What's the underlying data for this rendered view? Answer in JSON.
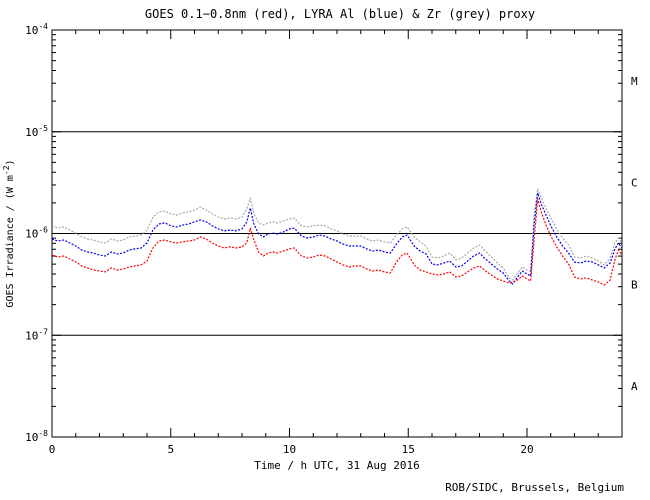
{
  "title": "GOES 0.1−0.8nm (red), LYRA Al (blue) & Zr (grey) proxy",
  "credit": "ROB/SIDC, Brussels, Belgium",
  "chart_data": {
    "type": "line",
    "title": "GOES 0.1−0.8nm (red), LYRA Al (blue) & Zr (grey) proxy",
    "xlabel": "Time / h UTC, 31 Aug 2016",
    "ylabel": "GOES Irradiance / (W m-2)",
    "ylabel_parts": {
      "main": "GOES Irradiance / (W m",
      "sup": "-2",
      "close": ")"
    },
    "x_range": [
      0,
      24
    ],
    "x_major_ticks": [
      0,
      5,
      10,
      15,
      20
    ],
    "x_minor_step": 1,
    "y_scale": "log",
    "y_range": [
      1e-08,
      0.0001
    ],
    "y_tick_exponents": [
      -4,
      -5,
      -6,
      -7,
      -8
    ],
    "hlines": [
      1e-05,
      1e-06,
      1e-07
    ],
    "grid": false,
    "legend_position": "none (colors named in title)",
    "flare_class_labels": [
      {
        "label": "M",
        "level": 3.16e-05
      },
      {
        "label": "C",
        "level": 3.16e-06
      },
      {
        "label": "B",
        "level": 3.16e-07
      },
      {
        "label": "A",
        "level": 3.16e-08
      }
    ],
    "x": [
      0,
      0.25,
      0.5,
      0.75,
      1,
      1.25,
      1.5,
      1.75,
      2,
      2.25,
      2.5,
      2.75,
      3,
      3.25,
      3.5,
      3.75,
      4,
      4.25,
      4.5,
      4.75,
      5,
      5.25,
      5.5,
      5.75,
      6,
      6.25,
      6.5,
      6.75,
      7,
      7.25,
      7.5,
      7.75,
      8,
      8.2,
      8.35,
      8.5,
      8.7,
      8.9,
      9.1,
      9.3,
      9.5,
      9.75,
      10,
      10.2,
      10.5,
      10.75,
      11,
      11.25,
      11.5,
      11.75,
      12,
      12.25,
      12.5,
      12.75,
      13,
      13.25,
      13.5,
      13.75,
      14,
      14.25,
      14.5,
      14.75,
      14.95,
      15.25,
      15.5,
      15.75,
      16,
      16.25,
      16.5,
      16.75,
      17,
      17.25,
      17.5,
      17.75,
      18,
      18.25,
      18.5,
      18.75,
      19,
      19.25,
      19.4,
      19.6,
      19.8,
      20,
      20.15,
      20.3,
      20.45,
      20.6,
      20.8,
      21,
      21.25,
      21.5,
      21.75,
      22,
      22.25,
      22.5,
      22.75,
      23,
      23.25,
      23.5,
      23.7,
      23.85,
      24
    ],
    "series": [
      {
        "name": "GOES 0.1-0.8nm",
        "key": "goes-xray",
        "color": "#ff0000",
        "values": [
          6.15e-07,
          5.87e-07,
          6.01e-07,
          5.62e-07,
          5.25e-07,
          4.8e-07,
          4.58e-07,
          4.38e-07,
          4.28e-07,
          4.19e-07,
          4.58e-07,
          4.38e-07,
          4.48e-07,
          4.69e-07,
          4.8e-07,
          4.91e-07,
          5.37e-07,
          7.21e-07,
          8.43e-07,
          8.63e-07,
          8.26e-07,
          8.07e-07,
          8.26e-07,
          8.43e-07,
          8.63e-07,
          9.25e-07,
          8.83e-07,
          8.07e-07,
          7.53e-07,
          7.21e-07,
          7.38e-07,
          7.21e-07,
          7.38e-07,
          8.07e-07,
          1.13e-06,
          8.63e-07,
          6.58e-07,
          6.01e-07,
          6.43e-07,
          6.58e-07,
          6.43e-07,
          6.73e-07,
          7.05e-07,
          7.21e-07,
          6.01e-07,
          5.74e-07,
          5.87e-07,
          6.15e-07,
          6.01e-07,
          5.62e-07,
          5.25e-07,
          4.91e-07,
          4.69e-07,
          4.8e-07,
          4.8e-07,
          4.48e-07,
          4.28e-07,
          4.38e-07,
          4.19e-07,
          4.09e-07,
          5.25e-07,
          6.15e-07,
          6.43e-07,
          4.91e-07,
          4.38e-07,
          4.19e-07,
          4e-07,
          3.91e-07,
          4e-07,
          4.19e-07,
          3.74e-07,
          3.83e-07,
          4.19e-07,
          4.58e-07,
          4.8e-07,
          4.28e-07,
          3.91e-07,
          3.57e-07,
          3.41e-07,
          3.26e-07,
          3.33e-07,
          3.49e-07,
          3.83e-07,
          3.57e-07,
          3.41e-07,
          8.63e-07,
          2.18e-06,
          1.63e-06,
          1.21e-06,
          9.46e-07,
          7.38e-07,
          6.01e-07,
          5.02e-07,
          3.74e-07,
          3.57e-07,
          3.66e-07,
          3.49e-07,
          3.33e-07,
          3.12e-07,
          3.49e-07,
          5.5e-07,
          6.89e-07,
          6.15e-07
        ]
      },
      {
        "name": "LYRA Al proxy",
        "key": "lyra-al-proxy",
        "color": "#0000ee",
        "values": [
          8.83e-07,
          8.43e-07,
          8.63e-07,
          8.07e-07,
          7.53e-07,
          6.89e-07,
          6.58e-07,
          6.43e-07,
          6.15e-07,
          6.01e-07,
          6.58e-07,
          6.29e-07,
          6.43e-07,
          6.89e-07,
          7.05e-07,
          7.21e-07,
          8.07e-07,
          1.08e-06,
          1.24e-06,
          1.27e-06,
          1.19e-06,
          1.16e-06,
          1.21e-06,
          1.24e-06,
          1.3e-06,
          1.36e-06,
          1.3e-06,
          1.19e-06,
          1.11e-06,
          1.06e-06,
          1.08e-06,
          1.06e-06,
          1.11e-06,
          1.3e-06,
          1.78e-06,
          1.24e-06,
          9.89e-07,
          9.25e-07,
          9.89e-07,
          1.01e-06,
          9.89e-07,
          1.04e-06,
          1.11e-06,
          1.13e-06,
          9.46e-07,
          9.04e-07,
          9.25e-07,
          9.66e-07,
          9.46e-07,
          8.83e-07,
          8.43e-07,
          7.89e-07,
          7.53e-07,
          7.53e-07,
          7.53e-07,
          7.05e-07,
          6.73e-07,
          6.89e-07,
          6.58e-07,
          6.43e-07,
          7.89e-07,
          9.25e-07,
          9.66e-07,
          7.53e-07,
          6.73e-07,
          6.29e-07,
          5.02e-07,
          4.91e-07,
          5.13e-07,
          5.37e-07,
          4.69e-07,
          4.8e-07,
          5.37e-07,
          6.01e-07,
          6.43e-07,
          5.62e-07,
          5.02e-07,
          4.48e-07,
          4.09e-07,
          3.41e-07,
          3.19e-07,
          3.74e-07,
          4.28e-07,
          4e-07,
          3.83e-07,
          1.21e-06,
          2.5e-06,
          1.95e-06,
          1.52e-06,
          1.19e-06,
          9.25e-07,
          7.53e-07,
          6.43e-07,
          5.25e-07,
          5.13e-07,
          5.37e-07,
          5.25e-07,
          4.91e-07,
          4.58e-07,
          5.13e-07,
          7.05e-07,
          8.07e-07,
          7.21e-07
        ]
      },
      {
        "name": "LYRA Zr proxy",
        "key": "lyra-zr-proxy",
        "color": "#a8a8a8",
        "values": [
          1.19e-06,
          1.13e-06,
          1.16e-06,
          1.08e-06,
          1.01e-06,
          9.25e-07,
          8.83e-07,
          8.63e-07,
          8.26e-07,
          8.07e-07,
          8.83e-07,
          8.43e-07,
          8.63e-07,
          9.25e-07,
          9.46e-07,
          9.66e-07,
          1.08e-06,
          1.45e-06,
          1.63e-06,
          1.66e-06,
          1.56e-06,
          1.52e-06,
          1.59e-06,
          1.63e-06,
          1.7e-06,
          1.82e-06,
          1.7e-06,
          1.56e-06,
          1.45e-06,
          1.39e-06,
          1.42e-06,
          1.39e-06,
          1.45e-06,
          1.74e-06,
          2.23e-06,
          1.56e-06,
          1.27e-06,
          1.21e-06,
          1.27e-06,
          1.3e-06,
          1.27e-06,
          1.33e-06,
          1.39e-06,
          1.42e-06,
          1.19e-06,
          1.16e-06,
          1.19e-06,
          1.21e-06,
          1.19e-06,
          1.11e-06,
          1.06e-06,
          9.89e-07,
          9.46e-07,
          9.46e-07,
          9.46e-07,
          8.83e-07,
          8.43e-07,
          8.63e-07,
          8.26e-07,
          8.07e-07,
          9.66e-07,
          1.11e-06,
          1.16e-06,
          9.25e-07,
          8.26e-07,
          7.53e-07,
          5.87e-07,
          5.74e-07,
          6.01e-07,
          6.43e-07,
          5.5e-07,
          5.74e-07,
          6.43e-07,
          7.21e-07,
          7.71e-07,
          6.73e-07,
          5.87e-07,
          5.13e-07,
          4.58e-07,
          3.66e-07,
          3.49e-07,
          4.09e-07,
          4.69e-07,
          4.38e-07,
          4.28e-07,
          1.52e-06,
          2.74e-06,
          2.23e-06,
          1.78e-06,
          1.42e-06,
          1.11e-06,
          9.04e-07,
          7.71e-07,
          5.87e-07,
          5.74e-07,
          6.01e-07,
          5.74e-07,
          5.37e-07,
          4.91e-07,
          5.74e-07,
          8.07e-07,
          9.04e-07,
          8.07e-07
        ]
      }
    ]
  }
}
